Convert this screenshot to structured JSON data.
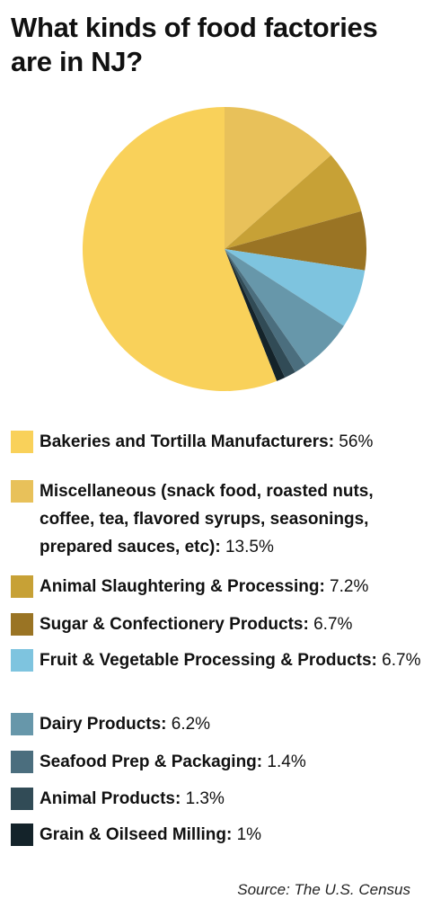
{
  "chart_data": {
    "type": "pie",
    "title": "What kinds of food factories are in NJ?",
    "slices": [
      {
        "label": "Bakeries and Tortilla Manufacturers:",
        "value_label": "56%",
        "value": 56,
        "color": "#F9D15A"
      },
      {
        "label": "Miscellaneous (snack food, roasted nuts, coffee, tea, flavored syrups, seasonings, prepared sauces, etc):",
        "value_label": "13.5%",
        "value": 13.5,
        "color": "#E8C15A"
      },
      {
        "label": "Animal Slaughtering & Processing:",
        "value_label": "7.2%",
        "value": 7.2,
        "color": "#C7A136"
      },
      {
        "label": "Sugar & Confectionery Products:",
        "value_label": "6.7%",
        "value": 6.7,
        "color": "#9A7424"
      },
      {
        "label": "Fruit & Vegetable Processing & Products:",
        "value_label": "6.7%",
        "value": 6.7,
        "color": "#7EC4DF"
      },
      {
        "label": "Dairy Products:",
        "value_label": "6.2%",
        "value": 6.2,
        "color": "#6797AA"
      },
      {
        "label": "Seafood Prep & Packaging:",
        "value_label": "1.4%",
        "value": 1.4,
        "color": "#4B6E7E"
      },
      {
        "label": "Animal Products:",
        "value_label": "1.3%",
        "value": 1.3,
        "color": "#314B56"
      },
      {
        "label": "Grain & Oilseed Milling:",
        "value_label": "1%",
        "value": 1,
        "color": "#14232A"
      }
    ],
    "legend_placement": "bottom"
  },
  "source": "Source: The U.S. Census"
}
